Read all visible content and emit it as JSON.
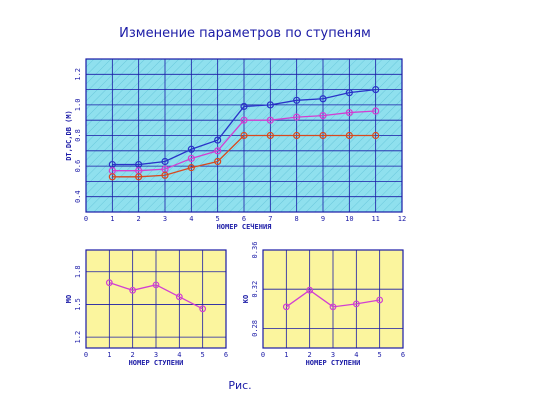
{
  "title": "Изменение параметров по ступеням",
  "caption": "Рис.",
  "colors": {
    "axis": "#1a1aa6",
    "main_bg": "#8fe0ee",
    "small_bg": "#fbf59e",
    "hatch": "#3aa9c4",
    "series": [
      "#2a33c8",
      "#d23fd2",
      "#d8491f"
    ]
  },
  "chart_data": [
    {
      "type": "line",
      "xlabel": "НОМЕР СЕЧЕНИЯ",
      "ylabel": "DT,DC,DB (М)",
      "xlim": [
        0,
        12
      ],
      "ylim": [
        0.3,
        1.3
      ],
      "xticks": [
        "0",
        "1",
        "2",
        "3",
        "4",
        "5",
        "6",
        "7",
        "8",
        "9",
        "10",
        "11",
        "12"
      ],
      "yticks": [
        "0.4",
        "0.6",
        "0.8",
        "1.0",
        "1.2"
      ],
      "x": [
        1,
        2,
        3,
        4,
        5,
        6,
        7,
        8,
        9,
        10,
        11
      ],
      "series": [
        {
          "values": [
            0.61,
            0.61,
            0.63,
            0.71,
            0.77,
            0.99,
            1.0,
            1.03,
            1.04,
            1.08,
            1.1
          ]
        },
        {
          "values": [
            0.57,
            0.57,
            0.58,
            0.65,
            0.7,
            0.9,
            0.9,
            0.92,
            0.93,
            0.95,
            0.96
          ]
        },
        {
          "values": [
            0.53,
            0.53,
            0.54,
            0.59,
            0.63,
            0.8,
            0.8,
            0.8,
            0.8,
            0.8,
            0.8
          ]
        }
      ]
    },
    {
      "type": "line",
      "xlabel": "НОМЕР СТУПЕНИ",
      "ylabel": "MO",
      "xlim": [
        0,
        6
      ],
      "ylim": [
        1.1,
        2.0
      ],
      "xticks": [
        "0",
        "1",
        "2",
        "3",
        "4",
        "5",
        "6"
      ],
      "yticks": [
        "1.2",
        "1.5",
        "1.8"
      ],
      "x": [
        1,
        2,
        3,
        4,
        5
      ],
      "series": [
        {
          "values": [
            1.7,
            1.63,
            1.68,
            1.57,
            1.46
          ]
        }
      ]
    },
    {
      "type": "line",
      "xlabel": "НОМЕР СТУПЕНИ",
      "ylabel": "KO",
      "xlim": [
        0,
        6
      ],
      "ylim": [
        0.26,
        0.36
      ],
      "xticks": [
        "0",
        "1",
        "2",
        "3",
        "4",
        "5",
        "6"
      ],
      "yticks": [
        "0.28",
        "0.32",
        "0.36"
      ],
      "x": [
        1,
        2,
        3,
        4,
        5
      ],
      "series": [
        {
          "values": [
            0.302,
            0.319,
            0.302,
            0.305,
            0.309
          ]
        }
      ]
    }
  ]
}
